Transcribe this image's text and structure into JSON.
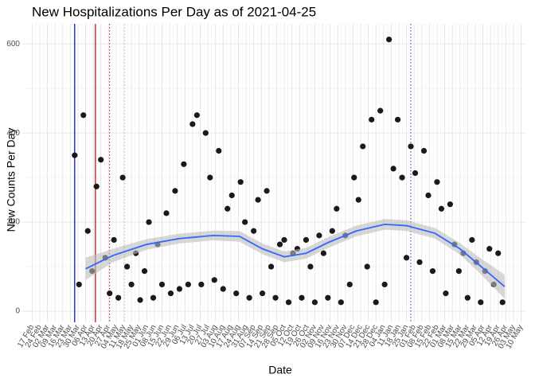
{
  "chart_data": {
    "type": "scatter",
    "title": "New Hospitalizations Per Day as of 2021-04-25",
    "x_label": "Date",
    "y_label": "New Counts Per Day",
    "xlim": [
      "2020-02-08",
      "2021-05-14"
    ],
    "ylim": [
      -25,
      645
    ],
    "yticks": [
      0,
      200,
      400,
      600
    ],
    "xticks": [
      {
        "value": "2020-02-17",
        "label": "17 Feb"
      },
      {
        "value": "2020-02-24",
        "label": "24 Feb"
      },
      {
        "value": "2020-03-02",
        "label": "02 Mar"
      },
      {
        "value": "2020-03-09",
        "label": "09 Mar"
      },
      {
        "value": "2020-03-16",
        "label": "16 Mar"
      },
      {
        "value": "2020-03-23",
        "label": "23 Mar"
      },
      {
        "value": "2020-03-30",
        "label": "30 Mar"
      },
      {
        "value": "2020-04-06",
        "label": "06 Apr"
      },
      {
        "value": "2020-04-13",
        "label": "13 Apr"
      },
      {
        "value": "2020-04-20",
        "label": "20 Apr"
      },
      {
        "value": "2020-04-27",
        "label": "27 Apr"
      },
      {
        "value": "2020-05-04",
        "label": "04 May"
      },
      {
        "value": "2020-05-11",
        "label": "11 May"
      },
      {
        "value": "2020-05-18",
        "label": "18 May"
      },
      {
        "value": "2020-05-25",
        "label": "25 May"
      },
      {
        "value": "2020-06-01",
        "label": "01 Jun"
      },
      {
        "value": "2020-06-08",
        "label": "08 Jun"
      },
      {
        "value": "2020-06-15",
        "label": "15 Jun"
      },
      {
        "value": "2020-06-22",
        "label": "22 Jun"
      },
      {
        "value": "2020-06-29",
        "label": "29 Jun"
      },
      {
        "value": "2020-07-06",
        "label": "06 Jul"
      },
      {
        "value": "2020-07-13",
        "label": "13 Jul"
      },
      {
        "value": "2020-07-20",
        "label": "20 Jul"
      },
      {
        "value": "2020-07-27",
        "label": "27 Jul"
      },
      {
        "value": "2020-08-03",
        "label": "03 Aug"
      },
      {
        "value": "2020-08-10",
        "label": "10 Aug"
      },
      {
        "value": "2020-08-17",
        "label": "17 Aug"
      },
      {
        "value": "2020-08-24",
        "label": "24 Aug"
      },
      {
        "value": "2020-08-31",
        "label": "31 Aug"
      },
      {
        "value": "2020-09-07",
        "label": "07 Sep"
      },
      {
        "value": "2020-09-14",
        "label": "14 Sep"
      },
      {
        "value": "2020-09-21",
        "label": "21 Sep"
      },
      {
        "value": "2020-09-28",
        "label": "28 Sep"
      },
      {
        "value": "2020-10-05",
        "label": "05 Oct"
      },
      {
        "value": "2020-10-12",
        "label": "12 Oct"
      },
      {
        "value": "2020-10-19",
        "label": "19 Oct"
      },
      {
        "value": "2020-10-26",
        "label": "26 Oct"
      },
      {
        "value": "2020-11-02",
        "label": "02 Nov"
      },
      {
        "value": "2020-11-09",
        "label": "09 Nov"
      },
      {
        "value": "2020-11-16",
        "label": "16 Nov"
      },
      {
        "value": "2020-11-23",
        "label": "23 Nov"
      },
      {
        "value": "2020-11-30",
        "label": "30 Nov"
      },
      {
        "value": "2020-12-07",
        "label": "07 Dec"
      },
      {
        "value": "2020-12-14",
        "label": "14 Dec"
      },
      {
        "value": "2020-12-21",
        "label": "21 Dec"
      },
      {
        "value": "2020-12-28",
        "label": "28 Dec"
      },
      {
        "value": "2021-01-04",
        "label": "04 Jan"
      },
      {
        "value": "2021-01-11",
        "label": "11 Jan"
      },
      {
        "value": "2021-01-18",
        "label": "18 Jan"
      },
      {
        "value": "2021-01-25",
        "label": "25 Jan"
      },
      {
        "value": "2021-02-01",
        "label": "01 Feb"
      },
      {
        "value": "2021-02-08",
        "label": "08 Feb"
      },
      {
        "value": "2021-02-15",
        "label": "15 Feb"
      },
      {
        "value": "2021-02-22",
        "label": "22 Feb"
      },
      {
        "value": "2021-03-01",
        "label": "01 Mar"
      },
      {
        "value": "2021-03-08",
        "label": "08 Mar"
      },
      {
        "value": "2021-03-15",
        "label": "15 Mar"
      },
      {
        "value": "2021-03-22",
        "label": "22 Mar"
      },
      {
        "value": "2021-03-29",
        "label": "29 Mar"
      },
      {
        "value": "2021-04-05",
        "label": "05 Apr"
      },
      {
        "value": "2021-04-12",
        "label": "12 Apr"
      },
      {
        "value": "2021-04-19",
        "label": "19 Apr"
      },
      {
        "value": "2021-04-26",
        "label": "26 Apr"
      },
      {
        "value": "2021-05-03",
        "label": "03 May"
      },
      {
        "value": "2021-05-10",
        "label": "10 May"
      }
    ],
    "grid": true,
    "color": "#1a1a1a",
    "x": [
      "2020-03-27",
      "2020-03-31",
      "2020-04-04",
      "2020-04-08",
      "2020-04-12",
      "2020-04-16",
      "2020-04-20",
      "2020-04-24",
      "2020-04-28",
      "2020-05-02",
      "2020-05-06",
      "2020-05-10",
      "2020-05-14",
      "2020-05-18",
      "2020-05-22",
      "2020-05-26",
      "2020-05-30",
      "2020-06-03",
      "2020-06-07",
      "2020-06-11",
      "2020-06-15",
      "2020-06-19",
      "2020-06-23",
      "2020-06-27",
      "2020-07-01",
      "2020-07-05",
      "2020-07-09",
      "2020-07-13",
      "2020-07-17",
      "2020-07-21",
      "2020-07-25",
      "2020-07-29",
      "2020-08-02",
      "2020-08-06",
      "2020-08-10",
      "2020-08-14",
      "2020-08-18",
      "2020-08-22",
      "2020-08-26",
      "2020-08-30",
      "2020-09-03",
      "2020-09-07",
      "2020-09-11",
      "2020-09-15",
      "2020-09-19",
      "2020-09-23",
      "2020-09-27",
      "2020-10-01",
      "2020-10-05",
      "2020-10-09",
      "2020-10-13",
      "2020-10-17",
      "2020-10-21",
      "2020-10-25",
      "2020-10-29",
      "2020-11-02",
      "2020-11-06",
      "2020-11-10",
      "2020-11-14",
      "2020-11-18",
      "2020-11-22",
      "2020-11-26",
      "2020-11-30",
      "2020-12-04",
      "2020-12-08",
      "2020-12-12",
      "2020-12-16",
      "2020-12-20",
      "2020-12-24",
      "2020-12-28",
      "2021-01-01",
      "2021-01-05",
      "2021-01-09",
      "2021-01-13",
      "2021-01-17",
      "2021-01-21",
      "2021-01-25",
      "2021-01-29",
      "2021-02-02",
      "2021-02-06",
      "2021-02-10",
      "2021-02-14",
      "2021-02-18",
      "2021-02-22",
      "2021-02-26",
      "2021-03-02",
      "2021-03-06",
      "2021-03-10",
      "2021-03-14",
      "2021-03-18",
      "2021-03-22",
      "2021-03-26",
      "2021-03-30",
      "2021-04-03",
      "2021-04-07",
      "2021-04-11",
      "2021-04-15",
      "2021-04-19",
      "2021-04-23"
    ],
    "values": [
      350,
      60,
      440,
      180,
      90,
      280,
      340,
      120,
      40,
      160,
      30,
      300,
      100,
      60,
      130,
      25,
      90,
      200,
      30,
      150,
      60,
      220,
      40,
      270,
      50,
      330,
      60,
      420,
      440,
      60,
      400,
      300,
      70,
      360,
      50,
      230,
      260,
      40,
      290,
      200,
      30,
      180,
      250,
      40,
      270,
      100,
      30,
      150,
      160,
      20,
      130,
      140,
      30,
      160,
      100,
      20,
      170,
      130,
      30,
      180,
      230,
      20,
      170,
      60,
      300,
      250,
      370,
      100,
      430,
      20,
      450,
      60,
      610,
      320,
      430,
      300,
      120,
      370,
      310,
      110,
      360,
      260,
      90,
      290,
      230,
      40,
      240,
      150,
      90,
      130,
      30,
      160,
      110,
      20,
      90,
      140,
      60,
      130,
      20
    ],
    "smooth": {
      "color": "#3366ff",
      "band_color": "#bdbdbd",
      "x": [
        "2020-04-06",
        "2020-05-01",
        "2020-06-01",
        "2020-07-01",
        "2020-08-01",
        "2020-08-25",
        "2020-09-15",
        "2020-10-05",
        "2020-10-25",
        "2020-11-15",
        "2020-12-10",
        "2021-01-05",
        "2021-01-25",
        "2021-02-20",
        "2021-03-15",
        "2021-04-01",
        "2021-04-25"
      ],
      "values": [
        95,
        125,
        150,
        163,
        170,
        168,
        140,
        122,
        130,
        155,
        180,
        195,
        192,
        175,
        140,
        105,
        55
      ],
      "lower": [
        70,
        110,
        138,
        152,
        159,
        156,
        128,
        110,
        118,
        143,
        168,
        183,
        180,
        163,
        127,
        88,
        28
      ],
      "upper": [
        120,
        140,
        162,
        174,
        181,
        180,
        152,
        134,
        142,
        167,
        192,
        207,
        204,
        187,
        153,
        122,
        82
      ]
    },
    "vlines": [
      {
        "x": "2020-03-27",
        "color": "#0000cc",
        "style": "solid"
      },
      {
        "x": "2020-04-15",
        "color": "#cc0000",
        "style": "solid"
      },
      {
        "x": "2020-04-28",
        "color": "#cc0000",
        "style": "dotted"
      },
      {
        "x": "2020-05-12",
        "color": "#f2a0a0",
        "style": "dotted"
      },
      {
        "x": "2021-01-29",
        "color": "#3333cc",
        "style": "dotted"
      }
    ]
  }
}
